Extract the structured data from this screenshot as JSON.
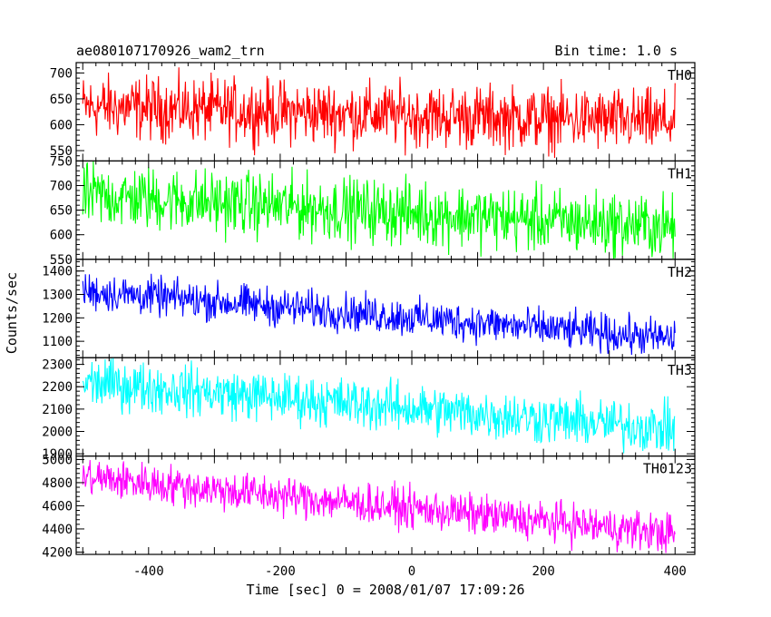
{
  "header": {
    "left_title": "ae080107170926_wam2_trn",
    "right_title": "Bin time: 1.0 s"
  },
  "chart_data": {
    "type": "line",
    "title": "ae080107170926_wam2_trn",
    "subtitle": "Bin time: 1.0 s",
    "xlabel": "Time [sec] 0 = 2008/01/07 17:09:26",
    "ylabel": "Counts/sec",
    "xlim": [
      -510,
      430
    ],
    "x_ticks": [
      -400,
      -200,
      0,
      200,
      400
    ],
    "x_start": -500,
    "x_end": 400,
    "bin_time": 1.0,
    "grid": false,
    "panels": [
      {
        "name": "TH0",
        "color": "#ff0000",
        "ylim": [
          530,
          720
        ],
        "y_ticks": [
          550,
          600,
          650,
          700
        ],
        "trend_start": 635,
        "trend_end": 605,
        "noise_amplitude": 30
      },
      {
        "name": "TH1",
        "color": "#00ff00",
        "ylim": [
          550,
          750
        ],
        "y_ticks": [
          550,
          600,
          650,
          700,
          750
        ],
        "trend_start": 680,
        "trend_end": 615,
        "noise_amplitude": 32
      },
      {
        "name": "TH2",
        "color": "#0000ff",
        "ylim": [
          1030,
          1450
        ],
        "y_ticks": [
          1100,
          1200,
          1300,
          1400
        ],
        "trend_start": 1315,
        "trend_end": 1110,
        "noise_amplitude": 40
      },
      {
        "name": "TH3",
        "color": "#00ffff",
        "ylim": [
          1890,
          2330
        ],
        "y_ticks": [
          1900,
          2000,
          2100,
          2200,
          2300
        ],
        "trend_start": 2220,
        "trend_end": 2010,
        "noise_amplitude": 55
      },
      {
        "name": "TH0123",
        "color": "#ff00ff",
        "ylim": [
          4180,
          5030
        ],
        "y_ticks": [
          4200,
          4400,
          4600,
          4800,
          5000
        ],
        "trend_start": 4850,
        "trend_end": 4360,
        "noise_amplitude": 85
      }
    ]
  }
}
